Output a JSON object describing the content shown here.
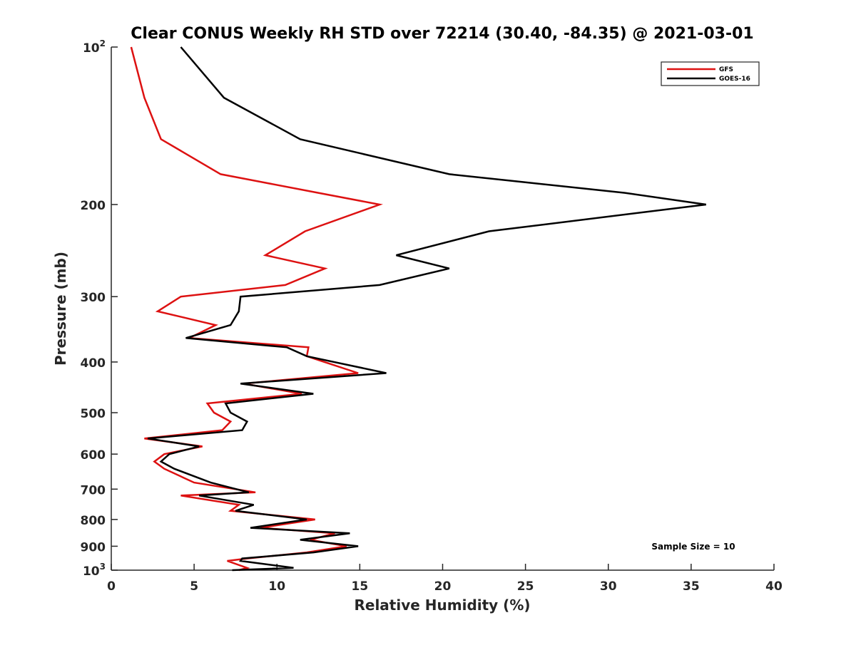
{
  "chart_data": {
    "type": "line",
    "title": "Clear CONUS Weekly RH STD over 72214 (30.40, -84.35) @ 2021-03-01",
    "xlabel": "Relative Humidity (%)",
    "ylabel": "Pressure (mb)",
    "xlim": [
      0,
      40
    ],
    "ylim": [
      100,
      1000
    ],
    "yscale": "log",
    "yreversed": true,
    "x_ticks": [
      0,
      5,
      10,
      15,
      20,
      25,
      30,
      35,
      40
    ],
    "x_tick_labels": [
      "0",
      "5",
      "10",
      "15",
      "20",
      "25",
      "30",
      "35",
      "40"
    ],
    "y_ticks": [
      100,
      200,
      300,
      400,
      500,
      600,
      700,
      800,
      900,
      1000
    ],
    "y_tick_labels": [
      {
        "base": "10",
        "exp": "2"
      },
      {
        "base": "200",
        "exp": ""
      },
      {
        "base": "300",
        "exp": ""
      },
      {
        "base": "400",
        "exp": ""
      },
      {
        "base": "500",
        "exp": ""
      },
      {
        "base": "600",
        "exp": ""
      },
      {
        "base": "700",
        "exp": ""
      },
      {
        "base": "800",
        "exp": ""
      },
      {
        "base": "900",
        "exp": ""
      },
      {
        "base": "10",
        "exp": "3"
      }
    ],
    "legend_position": "top-right",
    "annotation": "Sample Size = 10",
    "series": [
      {
        "name": "GFS",
        "color": "#dd1111",
        "points": [
          [
            1.2,
            100
          ],
          [
            2.0,
            125
          ],
          [
            3.0,
            150
          ],
          [
            6.6,
            175
          ],
          [
            12.5,
            190
          ],
          [
            16.2,
            200
          ],
          [
            11.7,
            225
          ],
          [
            9.3,
            250
          ],
          [
            12.9,
            265
          ],
          [
            10.5,
            285
          ],
          [
            4.2,
            300
          ],
          [
            2.8,
            320
          ],
          [
            6.3,
            340
          ],
          [
            4.7,
            360
          ],
          [
            11.9,
            375
          ],
          [
            11.8,
            390
          ],
          [
            14.9,
            420
          ],
          [
            8.0,
            440
          ],
          [
            11.5,
            460
          ],
          [
            5.8,
            480
          ],
          [
            6.2,
            500
          ],
          [
            7.2,
            520
          ],
          [
            6.7,
            540
          ],
          [
            2.0,
            560
          ],
          [
            5.5,
            580
          ],
          [
            3.2,
            600
          ],
          [
            2.6,
            620
          ],
          [
            3.2,
            640
          ],
          [
            5.0,
            680
          ],
          [
            8.7,
            710
          ],
          [
            4.2,
            720
          ],
          [
            7.7,
            750
          ],
          [
            7.2,
            770
          ],
          [
            12.3,
            800
          ],
          [
            9.0,
            830
          ],
          [
            13.5,
            850
          ],
          [
            12.0,
            875
          ],
          [
            14.2,
            900
          ],
          [
            11.8,
            925
          ],
          [
            8.2,
            950
          ],
          [
            7.0,
            960
          ],
          [
            8.2,
            990
          ],
          [
            7.7,
            1000
          ]
        ]
      },
      {
        "name": "GOES-16",
        "color": "#000000",
        "points": [
          [
            4.2,
            100
          ],
          [
            6.8,
            125
          ],
          [
            11.4,
            150
          ],
          [
            20.4,
            175
          ],
          [
            31.0,
            190
          ],
          [
            35.9,
            200
          ],
          [
            22.8,
            225
          ],
          [
            17.2,
            250
          ],
          [
            20.4,
            265
          ],
          [
            16.2,
            285
          ],
          [
            7.8,
            300
          ],
          [
            7.7,
            320
          ],
          [
            7.2,
            340
          ],
          [
            4.5,
            360
          ],
          [
            10.6,
            375
          ],
          [
            11.8,
            390
          ],
          [
            16.6,
            420
          ],
          [
            7.8,
            440
          ],
          [
            12.2,
            460
          ],
          [
            6.9,
            480
          ],
          [
            7.2,
            500
          ],
          [
            8.2,
            520
          ],
          [
            7.9,
            540
          ],
          [
            2.2,
            560
          ],
          [
            5.3,
            580
          ],
          [
            3.5,
            600
          ],
          [
            3.0,
            620
          ],
          [
            3.8,
            640
          ],
          [
            6.0,
            680
          ],
          [
            8.3,
            710
          ],
          [
            5.3,
            720
          ],
          [
            8.6,
            750
          ],
          [
            7.5,
            770
          ],
          [
            11.8,
            800
          ],
          [
            8.4,
            830
          ],
          [
            14.4,
            850
          ],
          [
            11.4,
            875
          ],
          [
            14.9,
            900
          ],
          [
            12.2,
            925
          ],
          [
            7.9,
            950
          ],
          [
            7.8,
            960
          ],
          [
            11.0,
            990
          ],
          [
            7.3,
            1000
          ]
        ]
      }
    ]
  }
}
